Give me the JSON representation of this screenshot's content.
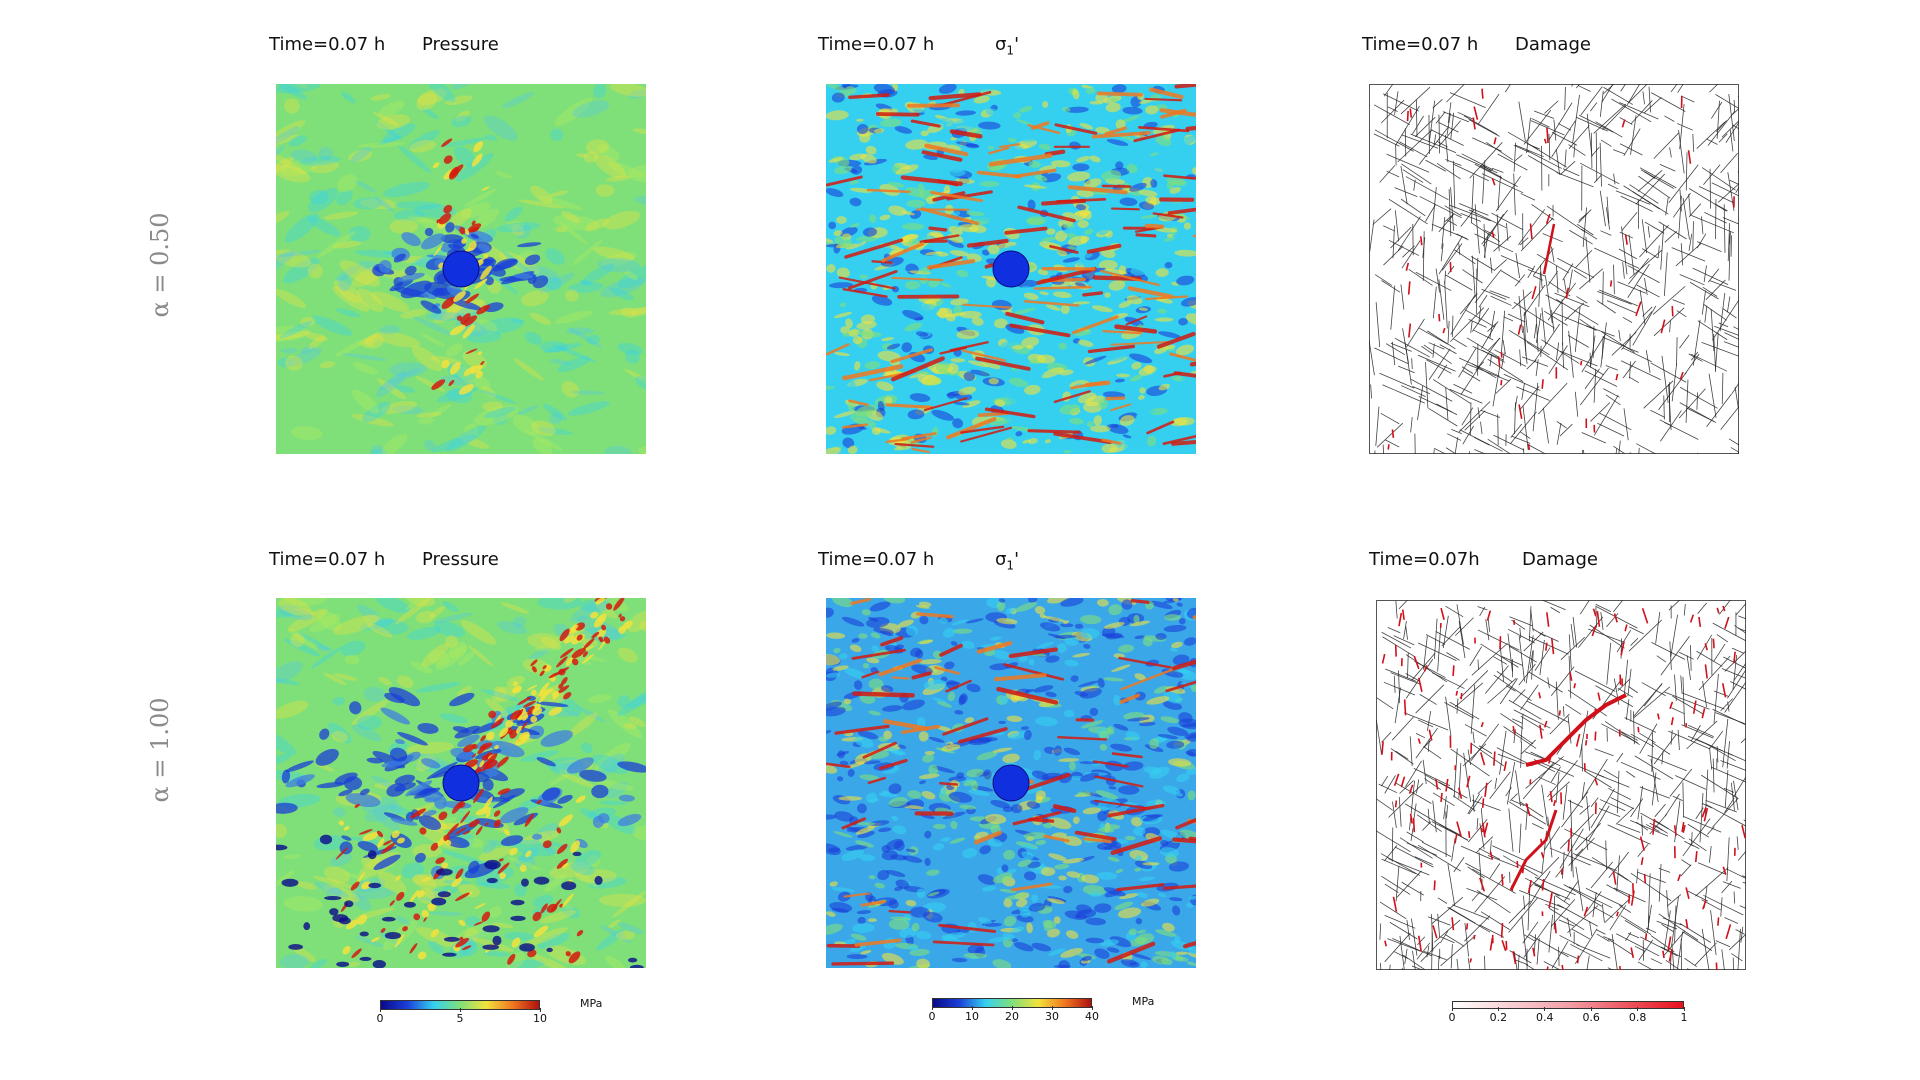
{
  "row_labels": {
    "top": "α = 0.50",
    "bottom": "α = 1.00"
  },
  "rows": {
    "top": {
      "pressure": {
        "time": "Time=0.07 h",
        "field": "Pressure"
      },
      "sigma": {
        "time": "Time=0.07 h",
        "field_symbol": "σ",
        "field_sub": "1",
        "field_prime": "'"
      },
      "damage": {
        "time": "Time=0.07 h",
        "field": "Damage"
      }
    },
    "bottom": {
      "pressure": {
        "time": "Time=0.07 h",
        "field": "Pressure"
      },
      "sigma": {
        "time": "Time=0.07 h",
        "field_symbol": "σ",
        "field_sub": "1",
        "field_prime": "'"
      },
      "damage": {
        "time": "Time=0.07h",
        "field": "Damage"
      }
    }
  },
  "colorbars": {
    "pressure": {
      "ticks": [
        "0",
        "5",
        "10"
      ],
      "unit": "MPa"
    },
    "sigma": {
      "ticks": [
        "0",
        "10",
        "20",
        "30",
        "40"
      ],
      "unit": "MPa"
    },
    "damage": {
      "ticks": [
        "0",
        "0.2",
        "0.4",
        "0.6",
        "0.8",
        "1"
      ]
    }
  },
  "colors": {
    "jet_background": "#7fe07a",
    "jet_blue": "#1a3fd8",
    "jet_cyan": "#35d0f0",
    "jet_yellow": "#f2e23c",
    "jet_red": "#d41a10",
    "fracture_line": "#222222",
    "damage_red": "#d0101a"
  }
}
